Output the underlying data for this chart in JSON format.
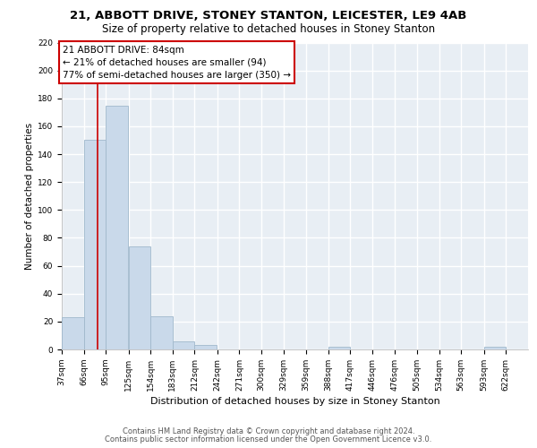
{
  "title1": "21, ABBOTT DRIVE, STONEY STANTON, LEICESTER, LE9 4AB",
  "title2": "Size of property relative to detached houses in Stoney Stanton",
  "xlabel": "Distribution of detached houses by size in Stoney Stanton",
  "ylabel": "Number of detached properties",
  "footer1": "Contains HM Land Registry data © Crown copyright and database right 2024.",
  "footer2": "Contains public sector information licensed under the Open Government Licence v3.0.",
  "bins": [
    37,
    66,
    95,
    125,
    154,
    183,
    212,
    242,
    271,
    300,
    329,
    359,
    388,
    417,
    446,
    476,
    505,
    534,
    563,
    593,
    622
  ],
  "bin_labels": [
    "37sqm",
    "66sqm",
    "95sqm",
    "125sqm",
    "154sqm",
    "183sqm",
    "212sqm",
    "242sqm",
    "271sqm",
    "300sqm",
    "329sqm",
    "359sqm",
    "388sqm",
    "417sqm",
    "446sqm",
    "476sqm",
    "505sqm",
    "534sqm",
    "563sqm",
    "593sqm",
    "622sqm"
  ],
  "values": [
    23,
    150,
    175,
    74,
    24,
    6,
    3,
    0,
    0,
    0,
    0,
    0,
    2,
    0,
    0,
    0,
    0,
    0,
    0,
    2,
    0
  ],
  "bar_color": "#c9d9ea",
  "bar_edgecolor": "#a0b8cc",
  "vline_x": 84,
  "vline_color": "#cc0000",
  "annotation_line1": "21 ABBOTT DRIVE: 84sqm",
  "annotation_line2": "← 21% of detached houses are smaller (94)",
  "annotation_line3": "77% of semi-detached houses are larger (350) →",
  "annotation_box_edgecolor": "#cc0000",
  "ylim_max": 220,
  "yticks": [
    0,
    20,
    40,
    60,
    80,
    100,
    120,
    140,
    160,
    180,
    200,
    220
  ],
  "bg_color": "#e8eef4",
  "grid_color": "#ffffff",
  "title1_fontsize": 9.5,
  "title2_fontsize": 8.5,
  "xlabel_fontsize": 8.0,
  "ylabel_fontsize": 7.5,
  "tick_fontsize": 6.5,
  "annotation_fontsize": 7.5,
  "footer_fontsize": 6.0
}
